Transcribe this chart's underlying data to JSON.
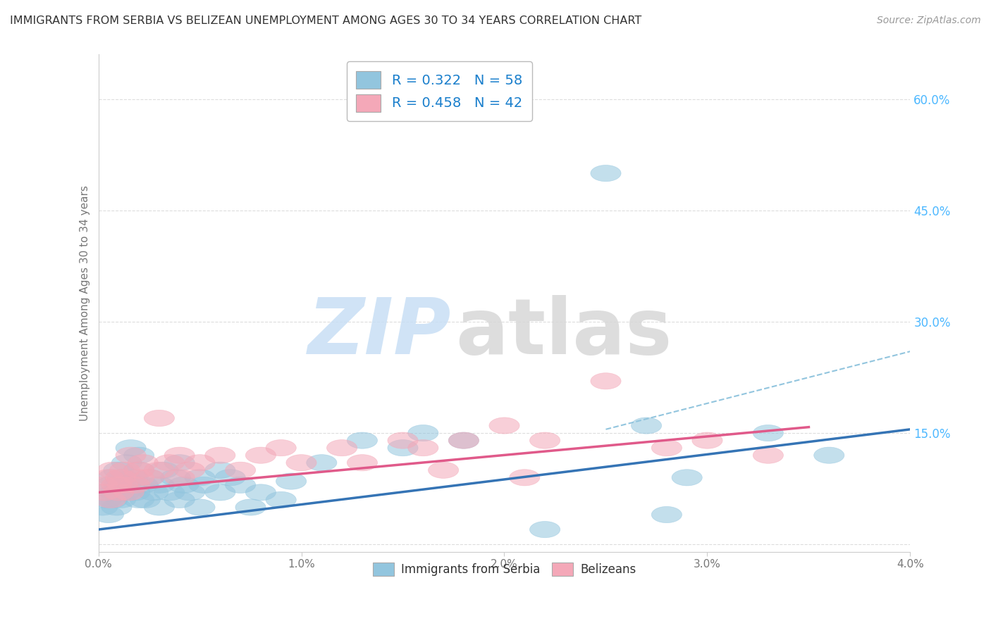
{
  "title": "IMMIGRANTS FROM SERBIA VS BELIZEAN UNEMPLOYMENT AMONG AGES 30 TO 34 YEARS CORRELATION CHART",
  "source": "Source: ZipAtlas.com",
  "ylabel": "Unemployment Among Ages 30 to 34 years",
  "xlim": [
    0.0,
    0.04
  ],
  "ylim": [
    -0.01,
    0.66
  ],
  "yticks_right": [
    0.0,
    0.15,
    0.3,
    0.45,
    0.6
  ],
  "ytick_labels_right": [
    "",
    "15.0%",
    "30.0%",
    "45.0%",
    "60.0%"
  ],
  "xticks": [
    0.0,
    0.01,
    0.02,
    0.03,
    0.04
  ],
  "xtick_labels": [
    "0.0%",
    "1.0%",
    "2.0%",
    "3.0%",
    "4.0%"
  ],
  "legend_text1": "R = 0.322   N = 58",
  "legend_text2": "R = 0.458   N = 42",
  "legend_label1": "Immigrants from Serbia",
  "legend_label2": "Belizeans",
  "blue_color": "#92c5de",
  "pink_color": "#f4a8b8",
  "blue_line_color": "#3574b5",
  "pink_line_color": "#e05a8a",
  "dashed_line_color": "#92c5de",
  "blue_scatter_x": [
    0.0002,
    0.0003,
    0.0004,
    0.0005,
    0.0006,
    0.0007,
    0.0007,
    0.0008,
    0.0009,
    0.001,
    0.001,
    0.0011,
    0.0012,
    0.0013,
    0.0014,
    0.0015,
    0.0016,
    0.0017,
    0.0018,
    0.002,
    0.002,
    0.002,
    0.0022,
    0.0023,
    0.0025,
    0.0027,
    0.003,
    0.003,
    0.0032,
    0.0035,
    0.0038,
    0.004,
    0.004,
    0.0042,
    0.0045,
    0.005,
    0.005,
    0.0052,
    0.006,
    0.006,
    0.0065,
    0.007,
    0.0075,
    0.008,
    0.009,
    0.0095,
    0.011,
    0.013,
    0.015,
    0.016,
    0.018,
    0.022,
    0.025,
    0.027,
    0.028,
    0.029,
    0.033,
    0.036
  ],
  "blue_scatter_y": [
    0.05,
    0.07,
    0.06,
    0.04,
    0.08,
    0.06,
    0.09,
    0.07,
    0.05,
    0.08,
    0.1,
    0.06,
    0.09,
    0.07,
    0.11,
    0.085,
    0.13,
    0.09,
    0.07,
    0.06,
    0.1,
    0.12,
    0.08,
    0.06,
    0.09,
    0.07,
    0.05,
    0.08,
    0.1,
    0.07,
    0.09,
    0.06,
    0.11,
    0.08,
    0.07,
    0.09,
    0.05,
    0.08,
    0.1,
    0.07,
    0.09,
    0.08,
    0.05,
    0.07,
    0.06,
    0.085,
    0.11,
    0.14,
    0.13,
    0.15,
    0.14,
    0.02,
    0.5,
    0.16,
    0.04,
    0.09,
    0.15,
    0.12
  ],
  "pink_scatter_x": [
    0.0002,
    0.0003,
    0.0005,
    0.0006,
    0.0007,
    0.0009,
    0.001,
    0.0011,
    0.0012,
    0.0013,
    0.0015,
    0.0016,
    0.0018,
    0.002,
    0.002,
    0.0022,
    0.0025,
    0.003,
    0.003,
    0.0035,
    0.004,
    0.004,
    0.0045,
    0.005,
    0.006,
    0.007,
    0.008,
    0.009,
    0.01,
    0.012,
    0.013,
    0.015,
    0.016,
    0.018,
    0.02,
    0.022,
    0.025,
    0.028,
    0.03,
    0.033,
    0.017,
    0.021
  ],
  "pink_scatter_y": [
    0.08,
    0.07,
    0.09,
    0.06,
    0.1,
    0.08,
    0.07,
    0.09,
    0.08,
    0.1,
    0.07,
    0.12,
    0.08,
    0.09,
    0.1,
    0.11,
    0.09,
    0.1,
    0.17,
    0.11,
    0.09,
    0.12,
    0.1,
    0.11,
    0.12,
    0.1,
    0.12,
    0.13,
    0.11,
    0.13,
    0.11,
    0.14,
    0.13,
    0.14,
    0.16,
    0.14,
    0.22,
    0.13,
    0.14,
    0.12,
    0.1,
    0.09
  ],
  "blue_line_x0": 0.0,
  "blue_line_x1": 0.04,
  "blue_line_y0": 0.02,
  "blue_line_y1": 0.155,
  "pink_line_x0": 0.0,
  "pink_line_x1": 0.035,
  "pink_line_y0": 0.07,
  "pink_line_y1": 0.158,
  "dashed_line_x0": 0.025,
  "dashed_line_x1": 0.04,
  "dashed_line_y0": 0.155,
  "dashed_line_y1": 0.26,
  "grid_color": "#dddddd",
  "watermark_zip_color": "#c8dff5",
  "watermark_atlas_color": "#d8d8d8"
}
